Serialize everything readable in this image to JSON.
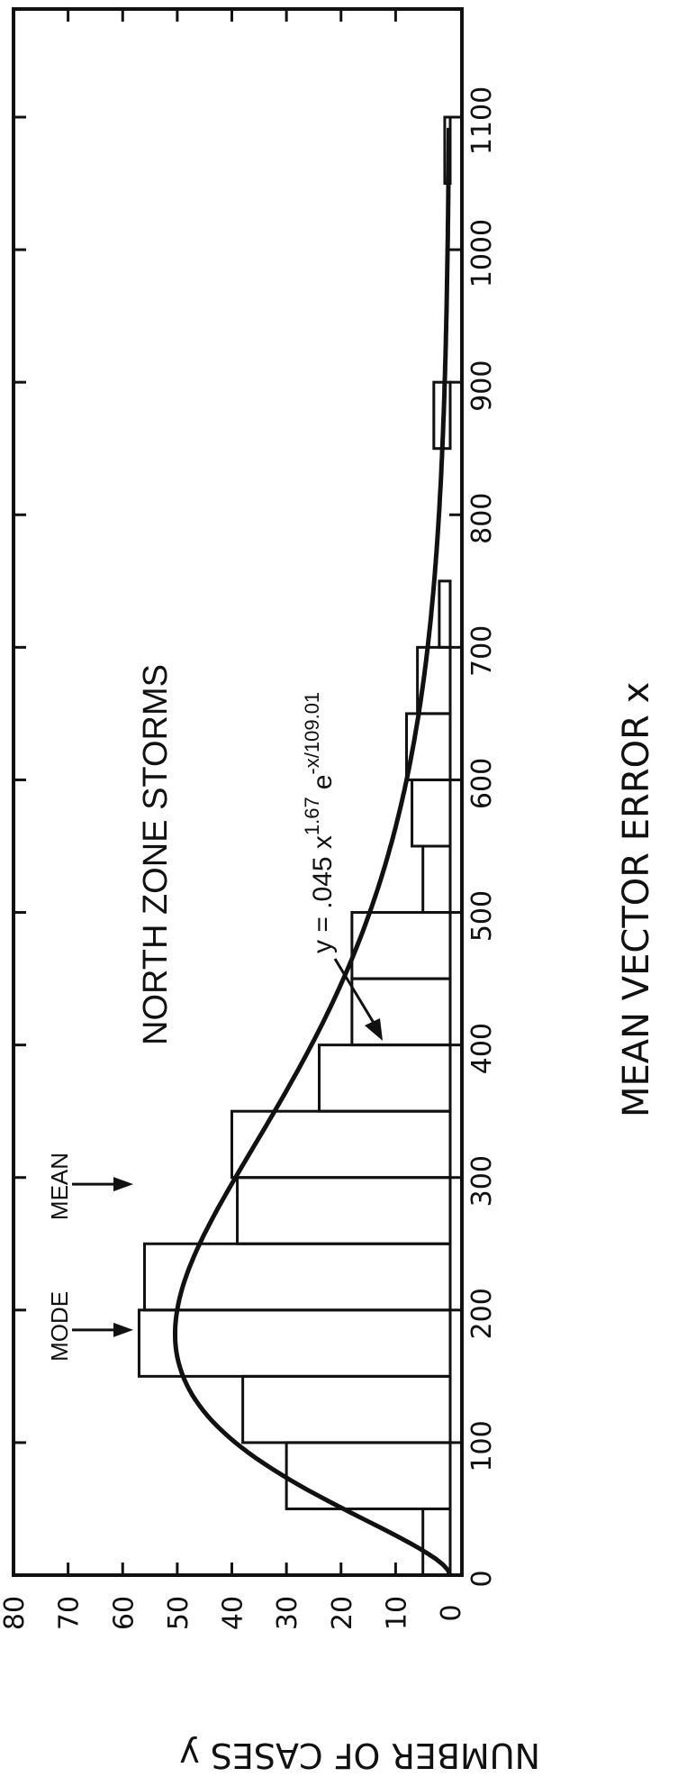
{
  "chart_data": {
    "type": "bar",
    "title": "NORTH ZONE STORMS",
    "xlabel": "MEAN VECTOR ERROR   x",
    "ylabel": "NUMBER OF CASES   y",
    "xlim": [
      0,
      1100
    ],
    "ylim": [
      0,
      80
    ],
    "x_ticks": [
      0,
      100,
      200,
      300,
      400,
      500,
      600,
      700,
      800,
      900,
      1000,
      1100
    ],
    "y_ticks": [
      0,
      10,
      20,
      30,
      40,
      50,
      60,
      70,
      80
    ],
    "bin_width": 50,
    "bins": [
      {
        "start": 0,
        "end": 50,
        "value": 5
      },
      {
        "start": 50,
        "end": 100,
        "value": 30
      },
      {
        "start": 100,
        "end": 150,
        "value": 38
      },
      {
        "start": 150,
        "end": 200,
        "value": 57
      },
      {
        "start": 200,
        "end": 250,
        "value": 56
      },
      {
        "start": 250,
        "end": 300,
        "value": 39
      },
      {
        "start": 300,
        "end": 350,
        "value": 40
      },
      {
        "start": 350,
        "end": 400,
        "value": 24
      },
      {
        "start": 400,
        "end": 450,
        "value": 18
      },
      {
        "start": 450,
        "end": 500,
        "value": 18
      },
      {
        "start": 500,
        "end": 550,
        "value": 5
      },
      {
        "start": 550,
        "end": 600,
        "value": 7
      },
      {
        "start": 600,
        "end": 650,
        "value": 8
      },
      {
        "start": 650,
        "end": 700,
        "value": 6
      },
      {
        "start": 700,
        "end": 750,
        "value": 2
      },
      {
        "start": 750,
        "end": 800,
        "value": 0
      },
      {
        "start": 800,
        "end": 850,
        "value": 0
      },
      {
        "start": 850,
        "end": 900,
        "value": 3
      },
      {
        "start": 900,
        "end": 950,
        "value": 0
      },
      {
        "start": 950,
        "end": 1000,
        "value": 0
      },
      {
        "start": 1000,
        "end": 1050,
        "value": 0
      },
      {
        "start": 1050,
        "end": 1100,
        "value": 1
      }
    ],
    "curve": {
      "equation": "y = .045 x^1.67 e^(-x/109.01)",
      "coefficient": 0.045,
      "exponent": 1.67,
      "scale": 109.01
    },
    "annotations": {
      "mode_label": "MODE",
      "mean_label": "MEAN",
      "mode_x": 185,
      "mean_x": 295
    },
    "grid": false
  }
}
